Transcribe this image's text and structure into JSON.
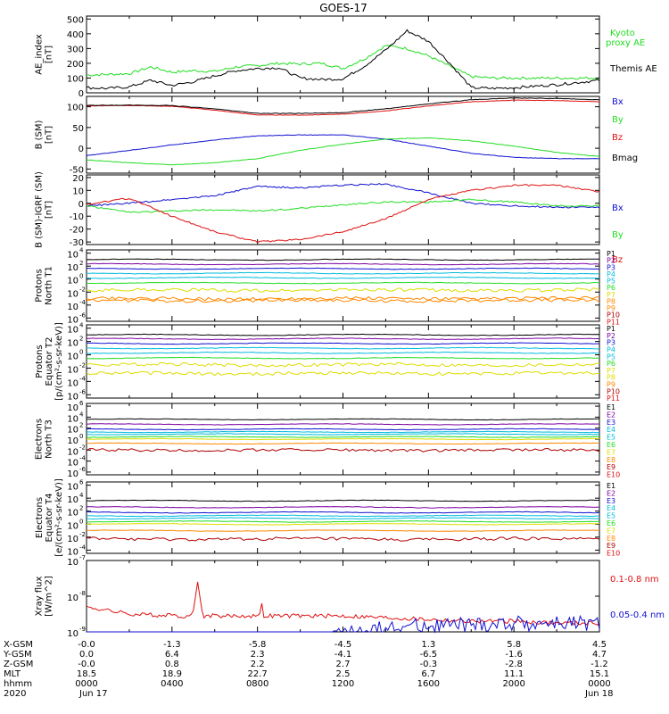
{
  "title": "GOES-17",
  "colors": {
    "black": "#000000",
    "red": "#e01010",
    "green": "#22dd22",
    "blue": "#1010d0",
    "cyan": "#00bbdd",
    "yellow": "#dddd00",
    "orange": "#ff8800",
    "darkred": "#b00000",
    "purple": "#7a00a0"
  },
  "chart_data": [
    {
      "type": "line",
      "id": "ae",
      "ylabel": [
        "AE_index",
        "[nT]"
      ],
      "ylim": [
        0,
        520
      ],
      "yticks": [
        "500",
        "400",
        "300",
        "200",
        "100",
        "0"
      ],
      "yticks_vals": [
        500,
        400,
        300,
        200,
        100,
        0
      ],
      "x": [
        0,
        1,
        2,
        3,
        4,
        5,
        6,
        7,
        8,
        9,
        10,
        11,
        12,
        13,
        14,
        15,
        16,
        17,
        18,
        19,
        20,
        21,
        22,
        23,
        24
      ],
      "series": [
        {
          "name": "Kyoto proxy AE",
          "color": "#22dd22",
          "values": [
            120,
            125,
            130,
            175,
            140,
            150,
            145,
            175,
            185,
            200,
            195,
            200,
            165,
            230,
            320,
            300,
            250,
            180,
            110,
            100,
            100,
            100,
            100,
            100,
            100
          ]
        },
        {
          "name": "Themis AE",
          "color": "#000000",
          "values": [
            35,
            30,
            40,
            85,
            50,
            75,
            115,
            150,
            165,
            170,
            100,
            90,
            95,
            180,
            290,
            420,
            350,
            200,
            35,
            30,
            35,
            45,
            55,
            70,
            85
          ]
        }
      ]
    },
    {
      "type": "line",
      "id": "bsm",
      "ylabel": [
        "B (SM)",
        "[nT]"
      ],
      "ylim": [
        -60,
        125
      ],
      "yticks": [
        "100",
        "50",
        "0",
        "-50"
      ],
      "yticks_vals": [
        100,
        50,
        0,
        -50
      ],
      "x": [
        0,
        2,
        4,
        6,
        8,
        10,
        12,
        14,
        16,
        18,
        20,
        22,
        24
      ],
      "series": [
        {
          "name": "Bx",
          "color": "#1010d0",
          "values": [
            -18,
            -5,
            8,
            20,
            30,
            32,
            32,
            22,
            5,
            -12,
            -22,
            -25,
            -25
          ]
        },
        {
          "name": "By",
          "color": "#22dd22",
          "values": [
            -28,
            -35,
            -40,
            -35,
            -25,
            -5,
            10,
            22,
            25,
            18,
            5,
            -10,
            -20
          ]
        },
        {
          "name": "Bz",
          "color": "#e01010",
          "values": [
            102,
            103,
            101,
            92,
            80,
            80,
            82,
            90,
            102,
            112,
            116,
            115,
            112
          ]
        },
        {
          "name": "Bmag",
          "color": "#000000",
          "values": [
            103,
            104,
            103,
            95,
            84,
            84,
            86,
            95,
            107,
            117,
            121,
            120,
            117
          ]
        }
      ]
    },
    {
      "type": "line",
      "id": "bdiff",
      "ylabel": [
        "B (SM)-IGRF (SM)",
        "[nT]"
      ],
      "ylim": [
        -32,
        22
      ],
      "yticks": [
        "20",
        "10",
        "0",
        "-10",
        "-20",
        "-30"
      ],
      "yticks_vals": [
        20,
        10,
        0,
        -10,
        -20,
        -30
      ],
      "x": [
        0,
        2,
        4,
        6,
        8,
        10,
        12,
        14,
        16,
        18,
        20,
        22,
        24
      ],
      "series": [
        {
          "name": "Bx",
          "color": "#1010d0",
          "values": [
            -2,
            0,
            3,
            6,
            13,
            12,
            14,
            15,
            8,
            0,
            -2,
            -3,
            -3
          ]
        },
        {
          "name": "By",
          "color": "#22dd22",
          "values": [
            -2,
            -7,
            -6,
            -5,
            -6,
            -4,
            -1,
            1,
            1,
            3,
            1,
            -2,
            -2
          ]
        },
        {
          "name": "Bz",
          "color": "#e01010",
          "values": [
            -1,
            4,
            -10,
            -22,
            -30,
            -28,
            -22,
            -12,
            3,
            10,
            14,
            14,
            9
          ]
        }
      ]
    },
    {
      "type": "line",
      "id": "pt1",
      "ylabel": [
        "Protons",
        "North T1"
      ],
      "yscale": "log",
      "ylim": [
        -6.5,
        4.5
      ],
      "yticks": [
        "10",
        "10",
        "10",
        "10",
        "10",
        "10"
      ],
      "yticks_exp": [
        "4",
        "2",
        "0",
        "-2",
        "-4",
        "-6"
      ],
      "yticks_vals": [
        4,
        2,
        0,
        -2,
        -4,
        -6
      ],
      "series": [
        {
          "name": "P1",
          "color": "#000000",
          "level": 3.0
        },
        {
          "name": "P2",
          "color": "#7a00a0",
          "level": 2.3
        },
        {
          "name": "P3",
          "color": "#1010d0",
          "level": 1.6
        },
        {
          "name": "P4",
          "color": "#00bbdd",
          "level": 0.9
        },
        {
          "name": "P5",
          "color": "#00bbdd",
          "level": 0.2
        },
        {
          "name": "P6",
          "color": "#22dd22",
          "level": -0.6
        },
        {
          "name": "P7",
          "color": "#dddd00",
          "level": -1.7
        },
        {
          "name": "P8",
          "color": "#ff8800",
          "level": -3.0
        },
        {
          "name": "P9",
          "color": "#ff8800",
          "level": -3.3
        },
        {
          "name": "P10",
          "color": "#b00000",
          "level": -99
        },
        {
          "name": "P11",
          "color": "#e01010",
          "level": -99
        }
      ]
    },
    {
      "type": "line",
      "id": "pt2",
      "ylabel": [
        "Protons",
        "Equator T2",
        "[p/(cm²-s-sr-keV)]"
      ],
      "yscale": "log",
      "ylim": [
        -6.5,
        4.5
      ],
      "yticks": [
        "10",
        "10",
        "10",
        "10",
        "10",
        "10"
      ],
      "yticks_exp": [
        "4",
        "2",
        "0",
        "-2",
        "-4",
        "-6"
      ],
      "yticks_vals": [
        4,
        2,
        0,
        -2,
        -4,
        -6
      ],
      "series": [
        {
          "name": "P1",
          "color": "#000000",
          "level": 3.0
        },
        {
          "name": "P2",
          "color": "#7a00a0",
          "level": 2.4
        },
        {
          "name": "P3",
          "color": "#1010d0",
          "level": 1.7
        },
        {
          "name": "P4",
          "color": "#00bbdd",
          "level": 1.0
        },
        {
          "name": "P5",
          "color": "#00bbdd",
          "level": 0.3
        },
        {
          "name": "P6",
          "color": "#22dd22",
          "level": -0.5
        },
        {
          "name": "P7",
          "color": "#dddd00",
          "level": -1.5
        },
        {
          "name": "P8",
          "color": "#dddd00",
          "level": -2.8
        },
        {
          "name": "P9",
          "color": "#ff8800",
          "level": -99
        },
        {
          "name": "P10",
          "color": "#b00000",
          "level": -99
        },
        {
          "name": "P11",
          "color": "#e01010",
          "level": -99
        }
      ]
    },
    {
      "type": "line",
      "id": "et3",
      "ylabel": [
        "Electrons",
        "North T3"
      ],
      "yscale": "log",
      "ylim": [
        -6.5,
        6.5
      ],
      "yticks": [
        "10",
        "10",
        "10",
        "10",
        "10",
        "10",
        "10"
      ],
      "yticks_exp": [
        "6",
        "4",
        "2",
        "0",
        "-2",
        "-4",
        "-6"
      ],
      "yticks_vals": [
        6,
        4,
        2,
        0,
        -2,
        -4,
        -6
      ],
      "series": [
        {
          "name": "E1",
          "color": "#000000",
          "level": 3.6
        },
        {
          "name": "E2",
          "color": "#7a00a0",
          "level": 2.7
        },
        {
          "name": "E3",
          "color": "#1010d0",
          "level": 1.8
        },
        {
          "name": "E4",
          "color": "#00bbdd",
          "level": 1.3
        },
        {
          "name": "E5",
          "color": "#00bbdd",
          "level": 0.9
        },
        {
          "name": "E6",
          "color": "#22dd22",
          "level": 0.4
        },
        {
          "name": "E7",
          "color": "#dddd00",
          "level": 0.0
        },
        {
          "name": "E8",
          "color": "#ff8800",
          "level": -0.8
        },
        {
          "name": "E9",
          "color": "#b00000",
          "level": -2.0
        },
        {
          "name": "E10",
          "color": "#e01010",
          "level": -99
        }
      ]
    },
    {
      "type": "line",
      "id": "et4",
      "ylabel": [
        "Electrons",
        "Equator T4",
        "[e/(cm²-s-sr-keV)]"
      ],
      "yscale": "log",
      "ylim": [
        -4.5,
        6.5
      ],
      "yticks": [
        "10",
        "10",
        "10",
        "10",
        "10",
        "10"
      ],
      "yticks_exp": [
        "6",
        "4",
        "2",
        "0",
        "-2",
        "-4"
      ],
      "yticks_vals": [
        6,
        4,
        2,
        0,
        -2,
        -4
      ],
      "series": [
        {
          "name": "E1",
          "color": "#000000",
          "level": 3.6
        },
        {
          "name": "E2",
          "color": "#7a00a0",
          "level": 2.6
        },
        {
          "name": "E3",
          "color": "#1010d0",
          "level": 1.8
        },
        {
          "name": "E4",
          "color": "#00bbdd",
          "level": 1.3
        },
        {
          "name": "E5",
          "color": "#00bbdd",
          "level": 0.9
        },
        {
          "name": "E6",
          "color": "#22dd22",
          "level": 0.4
        },
        {
          "name": "E7",
          "color": "#dddd00",
          "level": 0.0
        },
        {
          "name": "E8",
          "color": "#ff8800",
          "level": -1.0
        },
        {
          "name": "E9",
          "color": "#b00000",
          "level": -2.3
        },
        {
          "name": "E10",
          "color": "#e01010",
          "level": -99
        }
      ]
    },
    {
      "type": "line",
      "id": "xray",
      "ylabel": [
        "Xray flux",
        "[W/m^2]"
      ],
      "yscale": "log",
      "ylim": [
        -9,
        -7
      ],
      "yticks": [
        "10",
        "10",
        "10"
      ],
      "yticks_exp": [
        "-7",
        "-8",
        "-9"
      ],
      "yticks_vals": [
        -7,
        -8,
        -9
      ],
      "x": [
        0,
        2,
        4,
        6,
        8,
        10,
        12,
        14,
        16,
        18,
        20,
        22,
        24
      ],
      "series": [
        {
          "name": "0.1-0.8 nm",
          "color": "#e01010",
          "values": [
            -8.3,
            -8.5,
            -8.55,
            -8.55,
            -8.55,
            -8.55,
            -8.55,
            -8.6,
            -8.65,
            -8.7,
            -8.7,
            -8.75,
            -8.75
          ]
        },
        {
          "name": "0.05-0.4 nm",
          "color": "#1010d0",
          "values": [
            -9.6,
            -9.5,
            -9.6,
            -9.6,
            -9.6,
            -9.3,
            -9.1,
            -8.9,
            -8.8,
            -8.8,
            -8.75,
            -8.75,
            -8.8
          ]
        }
      ],
      "peaks": [
        {
          "x": 5.2,
          "value": -7.6
        },
        {
          "x": 8.2,
          "value": -8.2
        }
      ]
    }
  ],
  "orbit_table": {
    "rows": [
      {
        "label": "X-GSM",
        "values": [
          "-0.0",
          "-1.3",
          "-5.8",
          "-4.5",
          "1.3",
          "5.8",
          "4.5"
        ]
      },
      {
        "label": "Y-GSM",
        "values": [
          "0.0",
          "6.4",
          "2.3",
          "-4.1",
          "-6.5",
          "-1.6",
          "4.7"
        ]
      },
      {
        "label": "Z-GSM",
        "values": [
          "-0.0",
          "0.8",
          "2.2",
          "2.7",
          "-0.3",
          "-2.8",
          "-1.2"
        ]
      },
      {
        "label": "MLT",
        "values": [
          "18.5",
          "18.9",
          "22.7",
          "2.5",
          "6.7",
          "11.1",
          "15.1"
        ]
      },
      {
        "label": "hhmm",
        "values": [
          "0000",
          "0400",
          "0800",
          "1200",
          "1600",
          "2000",
          "0000"
        ]
      }
    ],
    "year": "2020",
    "start_date": "Jun 17",
    "end_date": "Jun 18"
  }
}
